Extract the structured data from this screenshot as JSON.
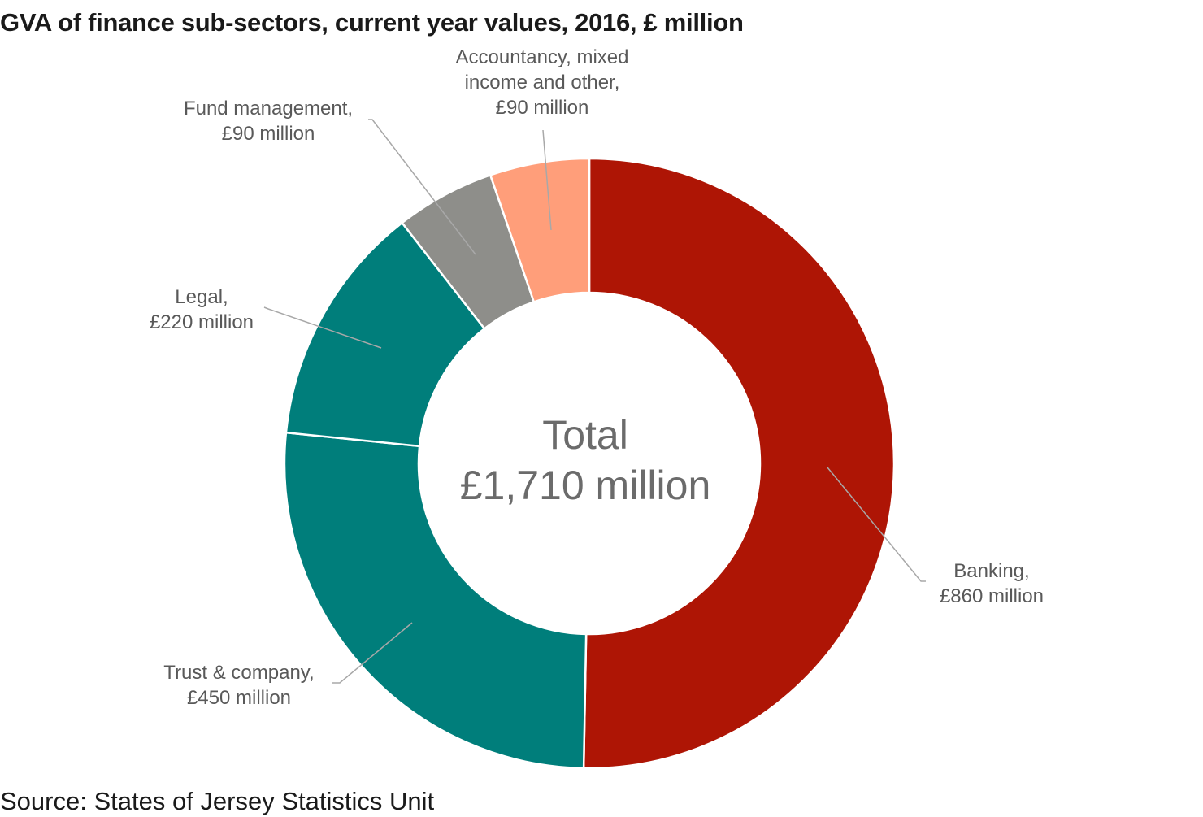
{
  "chart_data": {
    "type": "pie",
    "style": "donut",
    "title": "GVA of finance sub-sectors, current year values, 2016, £ million",
    "source": "Source: States of Jersey Statistics Unit",
    "center_text": [
      "Total",
      "£1,710 million"
    ],
    "unit": "£ million",
    "slices": [
      {
        "label": [
          "Banking,",
          "£860 million"
        ],
        "value": 860,
        "color": "#AE1505"
      },
      {
        "label": [
          "Trust & company,",
          "£450 million"
        ],
        "value": 450,
        "color": "#007E7B"
      },
      {
        "label": [
          "Legal,",
          "£220 million"
        ],
        "value": 220,
        "color": "#007E7B"
      },
      {
        "label": [
          "Fund management,",
          "£90 million"
        ],
        "value": 90,
        "color": "#8E8E8A"
      },
      {
        "label": [
          "Accountancy, mixed",
          "income and other,",
          "£90 million"
        ],
        "value": 90,
        "color": "#FF9E7A"
      }
    ]
  }
}
